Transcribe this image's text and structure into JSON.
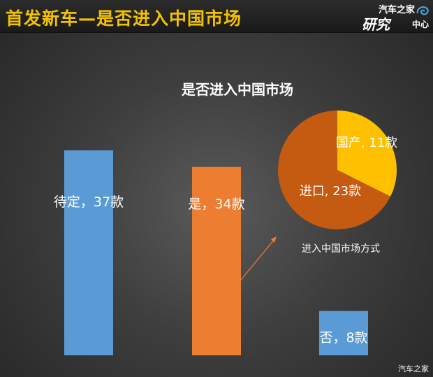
{
  "header": {
    "title": "首发新车—是否进入中国市场"
  },
  "logo": {
    "top": "汽车之家",
    "main": "研究",
    "sub": "中心"
  },
  "watermark": "汽车之家",
  "chart_data": [
    {
      "type": "bar",
      "title": "是否进入中国市场",
      "categories": [
        "待定",
        "是",
        "否"
      ],
      "values": [
        37,
        34,
        8
      ],
      "data_labels": [
        "待定，37款",
        "是，34款",
        "否，8款"
      ],
      "colors": [
        "#5b9bd5",
        "#ed7d31",
        "#5b9bd5"
      ],
      "grid": false,
      "axes_visible": false
    },
    {
      "type": "pie",
      "title": "进入中国市场方式",
      "categories": [
        "国产",
        "进口"
      ],
      "values": [
        11,
        23
      ],
      "data_labels": [
        "国产, 11款",
        "进口, 23款"
      ],
      "colors": [
        "#ffc000",
        "#c55a11"
      ]
    }
  ]
}
